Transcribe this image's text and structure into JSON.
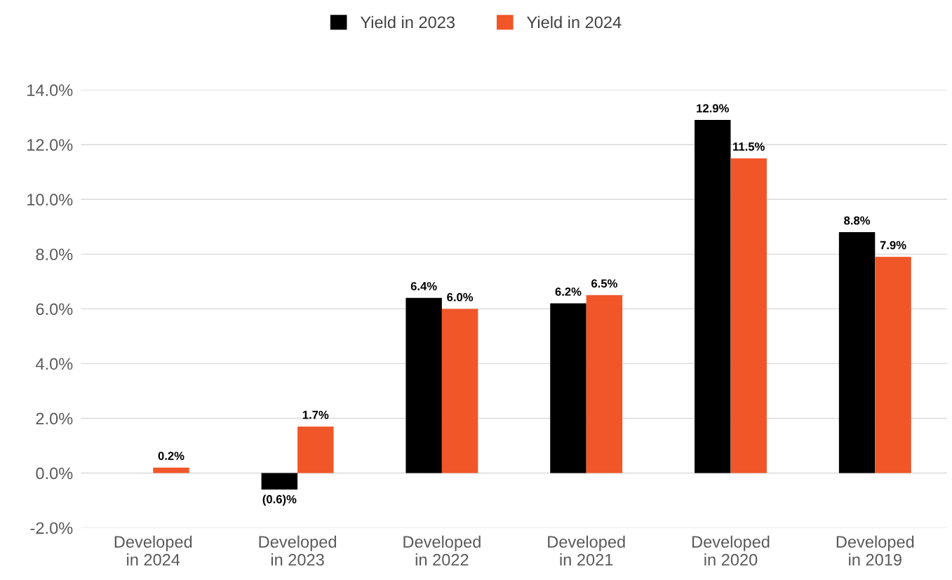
{
  "chart_data": {
    "type": "bar",
    "categories": [
      "Developed\nin 2024",
      "Developed\nin 2023",
      "Developed\nin 2022",
      "Developed\nin 2021",
      "Developed\nin 2020",
      "Developed\nin 2019"
    ],
    "series": [
      {
        "name": "Yield in 2023",
        "color": "#000000",
        "values": [
          null,
          -0.6,
          6.4,
          6.2,
          12.9,
          8.8
        ],
        "value_labels": [
          null,
          "(0.6)%",
          "6.4%",
          "6.2%",
          "12.9%",
          "8.8%"
        ]
      },
      {
        "name": "Yield in 2024",
        "color": "#f05628",
        "values": [
          0.2,
          1.7,
          6.0,
          6.5,
          11.5,
          7.9
        ],
        "value_labels": [
          "0.2%",
          "1.7%",
          "6.0%",
          "6.5%",
          "11.5%",
          "7.9%"
        ]
      }
    ],
    "ylim": [
      -2,
      14
    ],
    "yticks": [
      {
        "value": -2,
        "label": "-2.0%"
      },
      {
        "value": 0,
        "label": "0.0%"
      },
      {
        "value": 2,
        "label": "2.0%"
      },
      {
        "value": 4,
        "label": "4.0%"
      },
      {
        "value": 6,
        "label": "6.0%"
      },
      {
        "value": 8,
        "label": "8.0%"
      },
      {
        "value": 10,
        "label": "10.0%"
      },
      {
        "value": 12,
        "label": "12.0%"
      },
      {
        "value": 14,
        "label": "14.0%"
      }
    ],
    "grid": "y",
    "legend": "top"
  }
}
